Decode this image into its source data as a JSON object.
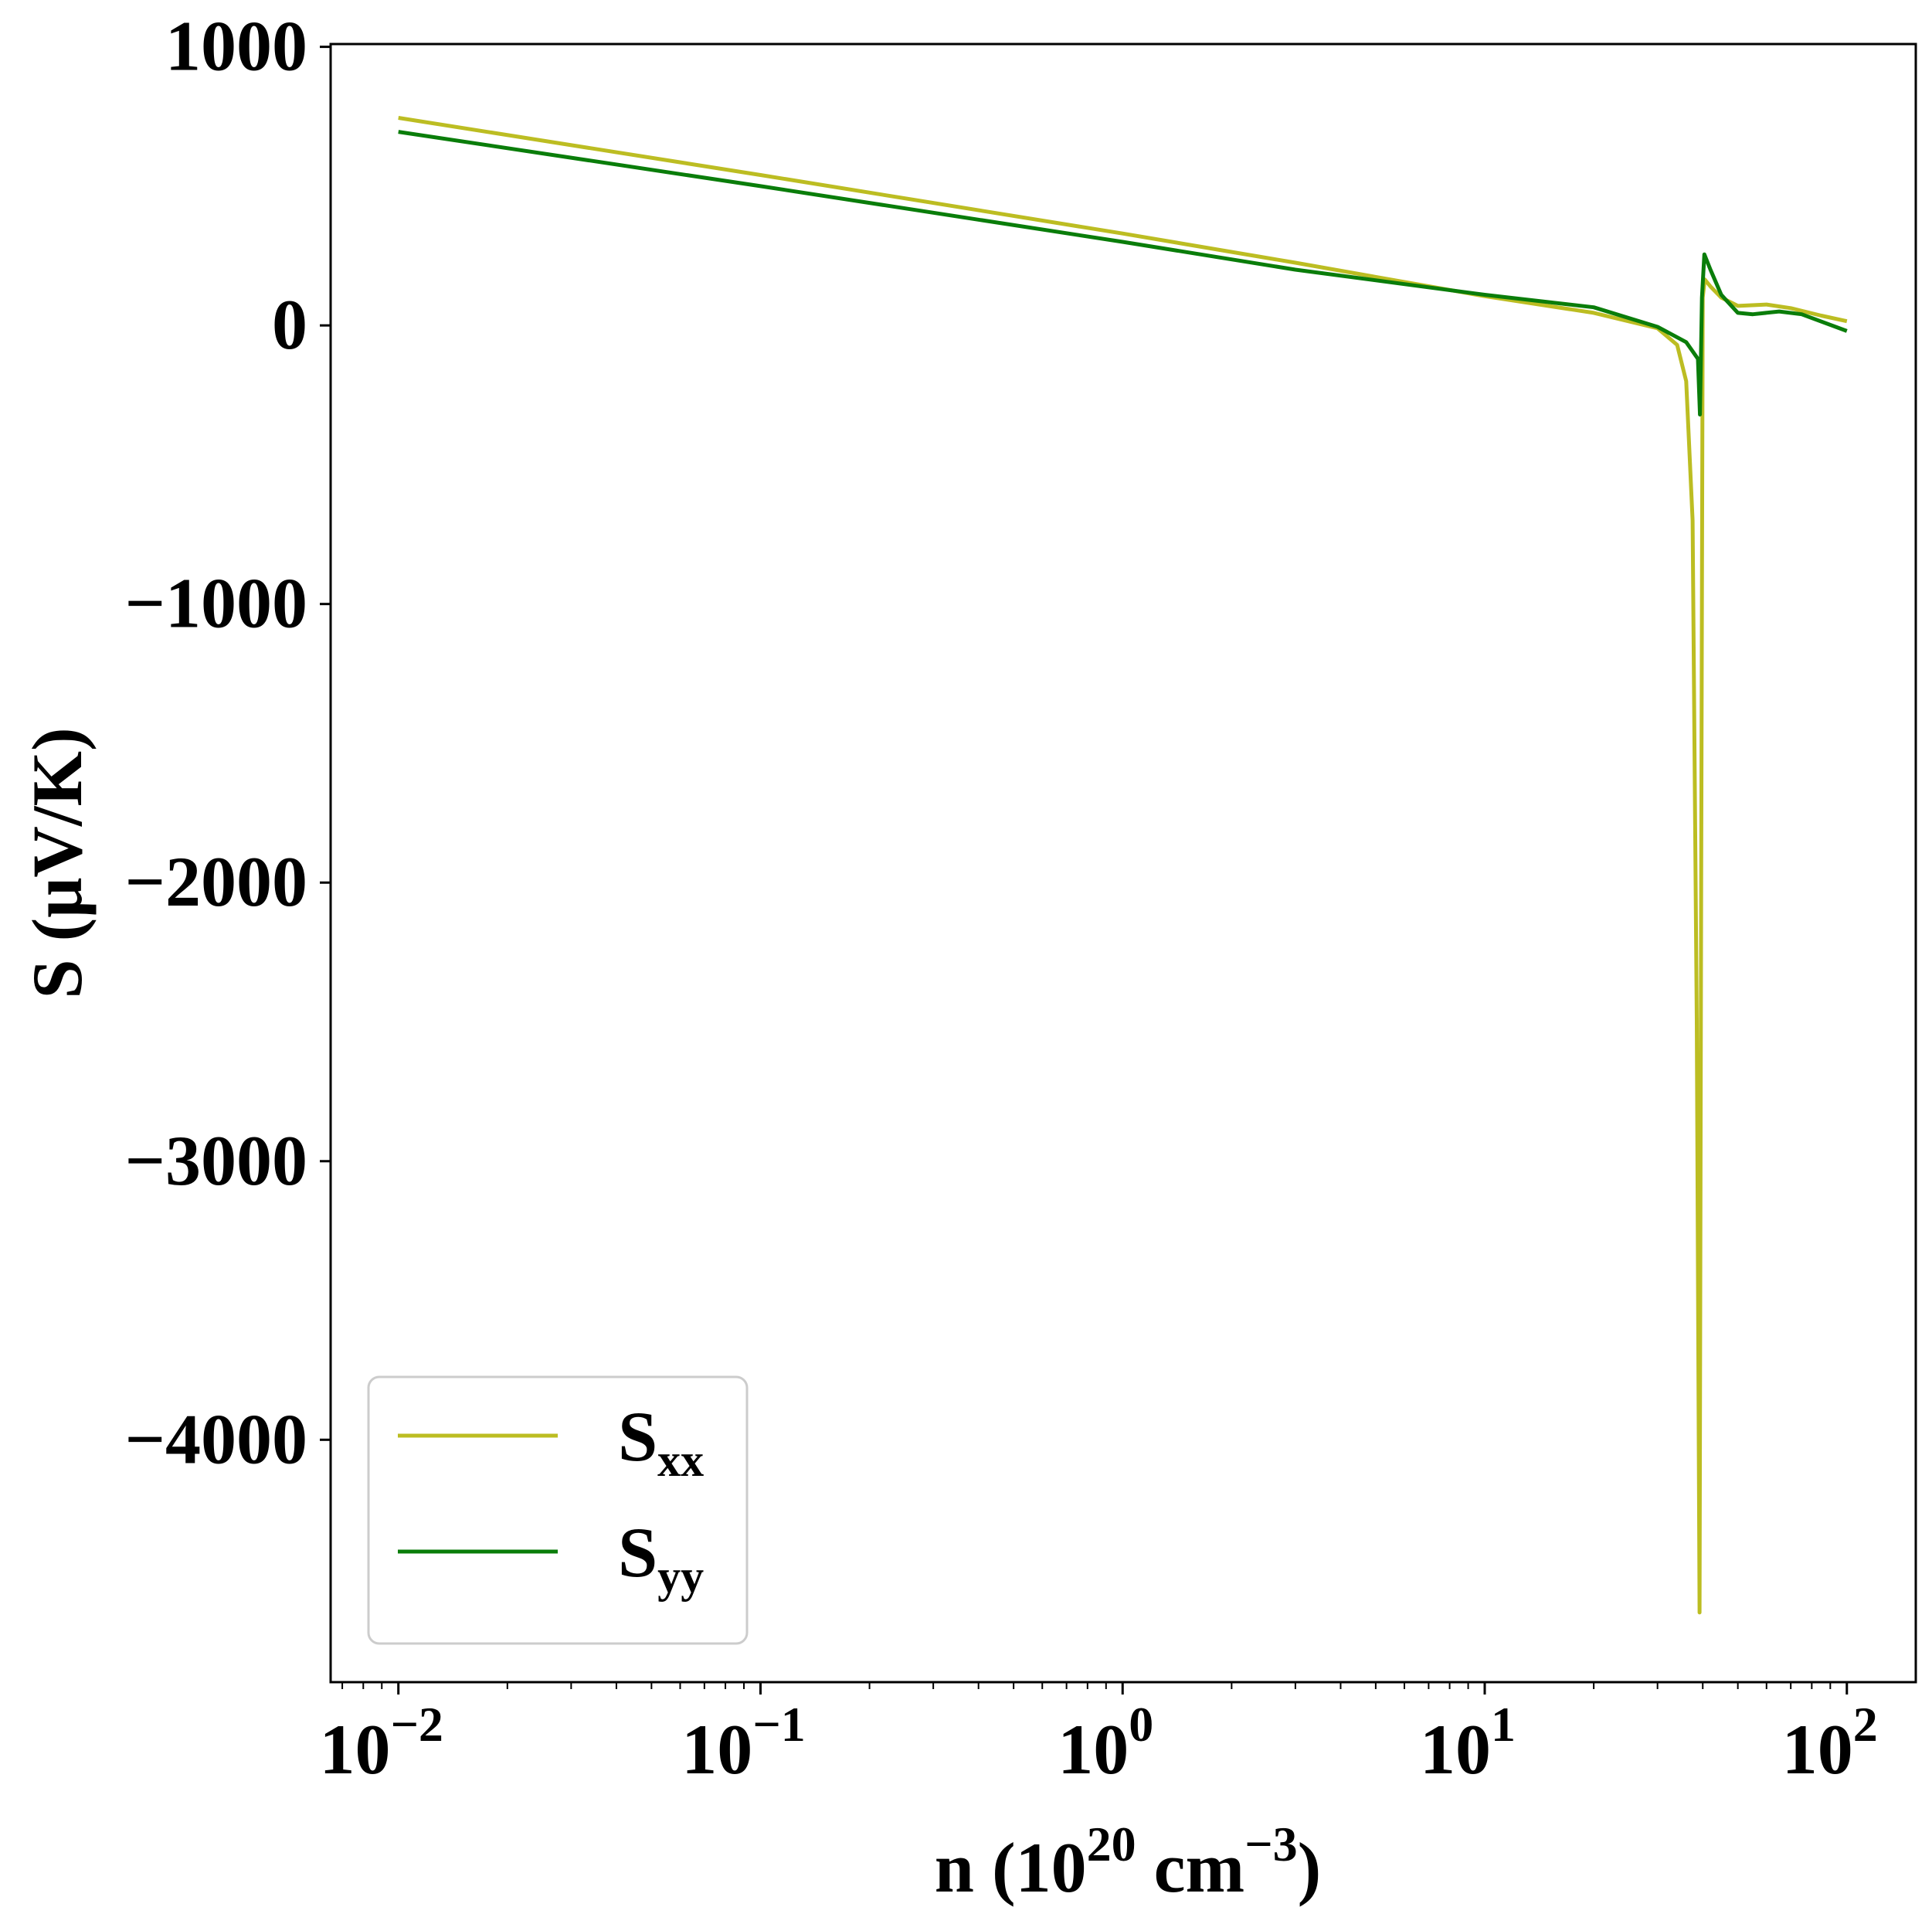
{
  "chart_data": {
    "type": "line",
    "title": "",
    "xlabel": {
      "main": "n (10",
      "sup1": "20",
      "mid": " cm",
      "sup2": "−3",
      "end": ")"
    },
    "ylabel": "S (μV/K)",
    "xscale": "log",
    "xlim": [
      0.0065,
      155
    ],
    "ylim": [
      -4870,
      1010
    ],
    "grid": false,
    "legend_position": "lower-left",
    "x_ticks": [
      {
        "value": 0.01,
        "base": "10",
        "exp": "−2"
      },
      {
        "value": 0.1,
        "base": "10",
        "exp": "−1"
      },
      {
        "value": 1,
        "base": "10",
        "exp": "0"
      },
      {
        "value": 10,
        "base": "10",
        "exp": "1"
      },
      {
        "value": 100,
        "base": "10",
        "exp": "2"
      }
    ],
    "y_ticks": [
      {
        "value": 1000,
        "label": "1000"
      },
      {
        "value": 0,
        "label": "0"
      },
      {
        "value": -1000,
        "label": "−1000"
      },
      {
        "value": -2000,
        "label": "−2000"
      },
      {
        "value": -3000,
        "label": "−3000"
      },
      {
        "value": -4000,
        "label": "−4000"
      }
    ],
    "series": [
      {
        "name": "S",
        "sub": "xx",
        "color": "#bcbd22",
        "points": [
          [
            0.01,
            745
          ],
          [
            0.1,
            540
          ],
          [
            1,
            330
          ],
          [
            3,
            225
          ],
          [
            10,
            105
          ],
          [
            20,
            45
          ],
          [
            30,
            -10
          ],
          [
            34,
            -70
          ],
          [
            36,
            -200
          ],
          [
            37.5,
            -700
          ],
          [
            38.5,
            -2500
          ],
          [
            39.2,
            -4620
          ],
          [
            39.6,
            -2000
          ],
          [
            40,
            100
          ],
          [
            40.5,
            165
          ],
          [
            42,
            140
          ],
          [
            45,
            100
          ],
          [
            50,
            70
          ],
          [
            60,
            75
          ],
          [
            70,
            62
          ],
          [
            85,
            35
          ],
          [
            100,
            15
          ]
        ]
      },
      {
        "name": "S",
        "sub": "yy",
        "color": "#0a7d0a",
        "points": [
          [
            0.01,
            695
          ],
          [
            0.1,
            500
          ],
          [
            1,
            300
          ],
          [
            3,
            200
          ],
          [
            10,
            110
          ],
          [
            20,
            65
          ],
          [
            30,
            -5
          ],
          [
            36,
            -60
          ],
          [
            38.8,
            -120
          ],
          [
            39.3,
            -320
          ],
          [
            39.8,
            100
          ],
          [
            40.4,
            255
          ],
          [
            42,
            200
          ],
          [
            45,
            110
          ],
          [
            50,
            45
          ],
          [
            55,
            40
          ],
          [
            65,
            50
          ],
          [
            75,
            40
          ],
          [
            100,
            -20
          ]
        ]
      }
    ]
  }
}
